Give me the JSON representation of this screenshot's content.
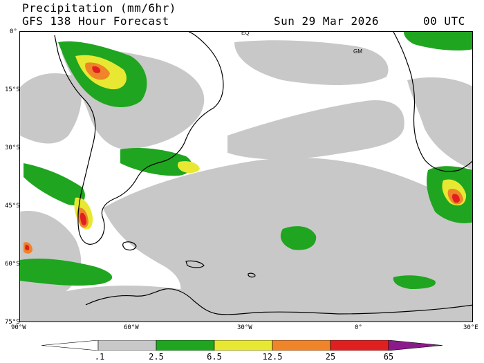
{
  "header": {
    "line1": "Precipitation (mm/6hr)",
    "line2_left": "GFS 138 Hour Forecast",
    "date": "Sun 29 Mar 2026",
    "time": "00 UTC"
  },
  "map": {
    "lat_ticks": [
      "0°",
      "15°S",
      "30°S",
      "45°S",
      "60°S",
      "75°S"
    ],
    "lon_ticks": [
      "90°W",
      "60°W",
      "30°W",
      "0°",
      "30°E"
    ],
    "markers": {
      "eq": "EQ",
      "gm": "GM"
    },
    "colors": {
      "ocean_bg": "#ffffff",
      "land_bg": "#ffffff",
      "light": "#c8c8c8",
      "green": "#1fa51f",
      "yellow": "#e8e833",
      "orange": "#f08428",
      "red": "#e02020",
      "purple": "#8b1a8b",
      "coast": "#000000"
    }
  },
  "legend": {
    "thresholds": [
      ".1",
      "2.5",
      "6.5",
      "12.5",
      "25",
      "65"
    ],
    "colors": [
      "#ffffff",
      "#c8c8c8",
      "#1fa51f",
      "#e8e833",
      "#f08428",
      "#e02020",
      "#8b1a8b"
    ]
  }
}
